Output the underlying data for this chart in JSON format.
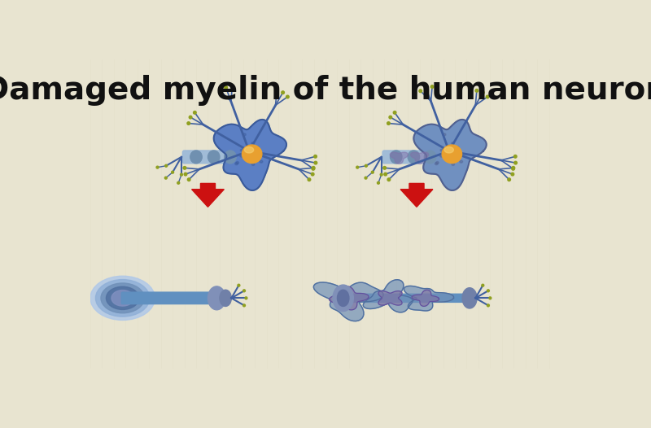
{
  "title": "Damaged myelin of the human neuron",
  "title_fontsize": 28,
  "title_fontweight": "bold",
  "background_color": "#e8e4d0",
  "bg_stripe_color": "#ddd8c0",
  "neuron_body_color": "#5b7fc4",
  "neuron_body_dark": "#3a5a9a",
  "nucleus_color": "#e8a030",
  "nucleus_highlight": "#f0c060",
  "axon_healthy_color": "#8ab0e0",
  "axon_healthy_light": "#c0d8f0",
  "myelin_healthy_color": "#9ab8d8",
  "myelin_damaged_color": "#7090b8",
  "myelin_damaged_inner": "#8070a0",
  "arrow_color": "#cc1111",
  "dendrite_color": "#4060a0",
  "tip_color": "#90a020",
  "figure_width": 8.0,
  "figure_height": 5.26
}
